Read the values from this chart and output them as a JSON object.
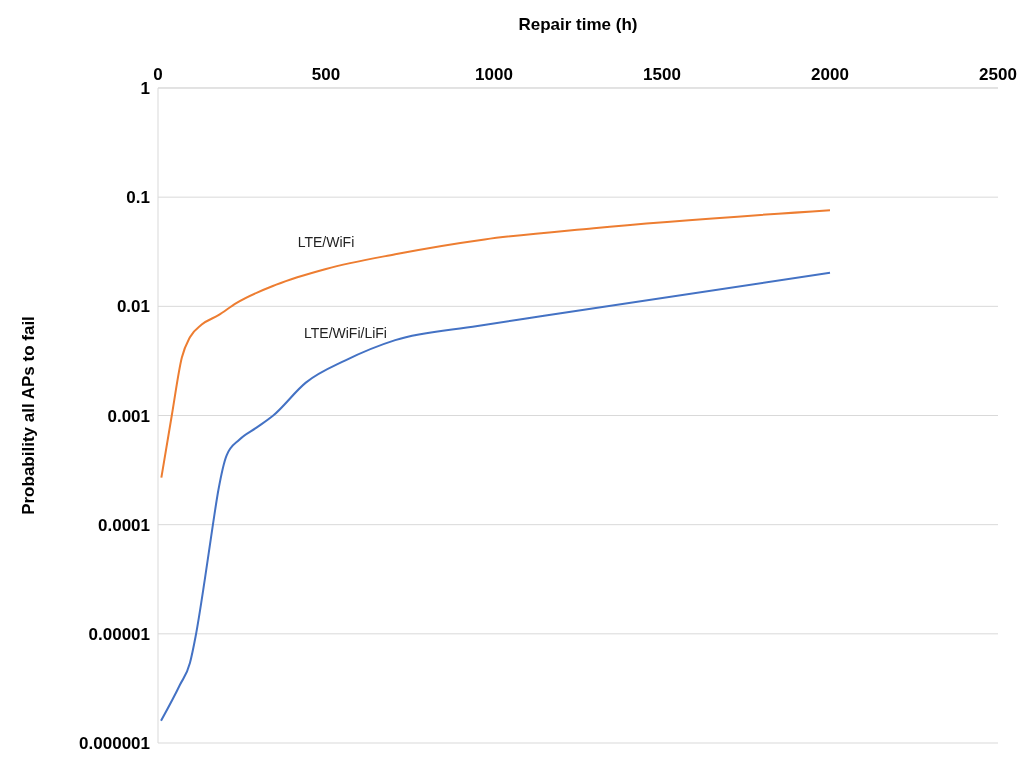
{
  "chart_data": {
    "type": "line",
    "xlabel": "Repair time (h)",
    "ylabel": "Probability all APs to fail",
    "log": "y",
    "grid": "y",
    "marker": "none",
    "line_style": "solid",
    "xlim": [
      0,
      2500
    ],
    "xticks": [
      0,
      500,
      1000,
      1500,
      2000,
      2500
    ],
    "ylim": [
      1e-06,
      1
    ],
    "yticks": [
      {
        "value": 1e-06,
        "label": "0.000001"
      },
      {
        "value": 1e-05,
        "label": "0.00001"
      },
      0.0001,
      0.001,
      0.01,
      0.1,
      1
    ],
    "series": [
      {
        "name": "LTE/WiFi",
        "color": "#ed7d31",
        "x": [
          10,
          41,
          71,
          95,
          130,
          180,
          233,
          352,
          500,
          706,
          972,
          1297,
          2000
        ],
        "values": [
          0.00027,
          0.001,
          0.0034,
          0.0052,
          0.0068,
          0.0083,
          0.0107,
          0.0158,
          0.022,
          0.03,
          0.041,
          0.052,
          0.076
        ]
      },
      {
        "name": "LTE/WiFi/LiFi",
        "color": "#4472c4",
        "x": [
          9,
          65,
          95,
          112,
          139,
          163,
          180,
          204,
          242,
          292,
          343,
          440,
          558,
          706,
          951,
          1149,
          2000
        ],
        "values": [
          1.6e-06,
          3.4e-06,
          5.4e-06,
          9.5e-06,
          3.1e-05,
          9.8e-05,
          0.00021,
          0.00043,
          0.0006,
          0.00077,
          0.001,
          0.002,
          0.0032,
          0.0049,
          0.0066,
          0.0082,
          0.0203
        ]
      }
    ]
  }
}
